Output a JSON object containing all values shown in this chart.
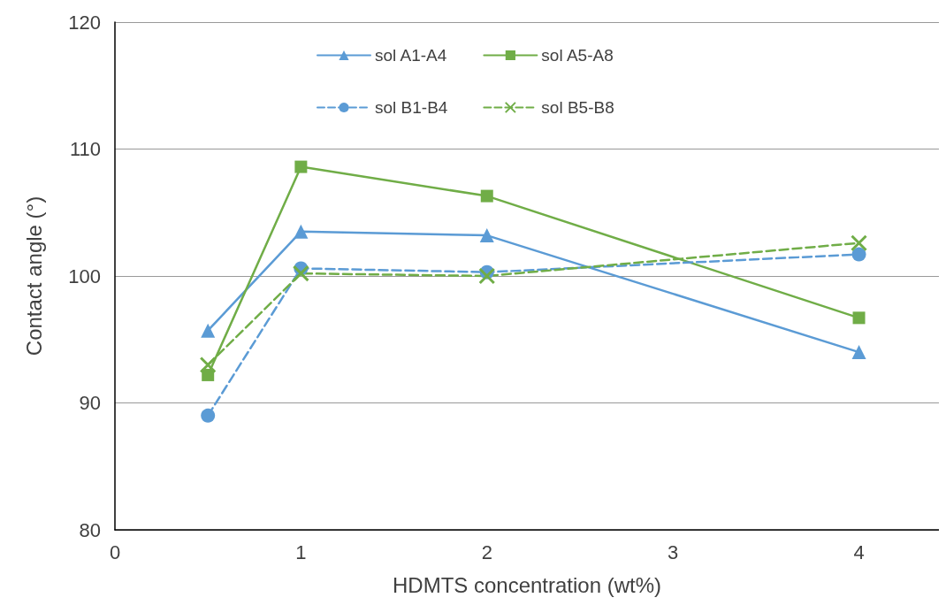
{
  "chart_data": {
    "type": "line",
    "xlabel": "HDMTS concentration (wt%)",
    "ylabel": "Contact angle (°)",
    "xlim": [
      0,
      4.43
    ],
    "xticks": [
      0,
      1,
      2,
      3,
      4
    ],
    "ylim": [
      80,
      120
    ],
    "yticks": [
      80,
      90,
      100,
      110,
      120
    ],
    "grid": "y",
    "legend": "top",
    "x": [
      0.5,
      1,
      2,
      4
    ],
    "series": [
      {
        "name": "sol A1-A4",
        "color": "#5b9bd5",
        "values": [
          95.7,
          103.5,
          103.2,
          94.0
        ],
        "marker": "triangle",
        "line_style": "solid"
      },
      {
        "name": "sol A5-A8",
        "color": "#70ad47",
        "values": [
          92.2,
          108.6,
          106.3,
          96.7
        ],
        "marker": "square",
        "line_style": "solid"
      },
      {
        "name": "sol B1-B4",
        "color": "#5b9bd5",
        "values": [
          89.0,
          100.6,
          100.3,
          101.7
        ],
        "marker": "circle",
        "line_style": "dashed"
      },
      {
        "name": "sol B5-B8",
        "color": "#70ad47",
        "values": [
          93.0,
          100.2,
          100.0,
          102.6
        ],
        "marker": "cross",
        "line_style": "dashed"
      }
    ]
  }
}
